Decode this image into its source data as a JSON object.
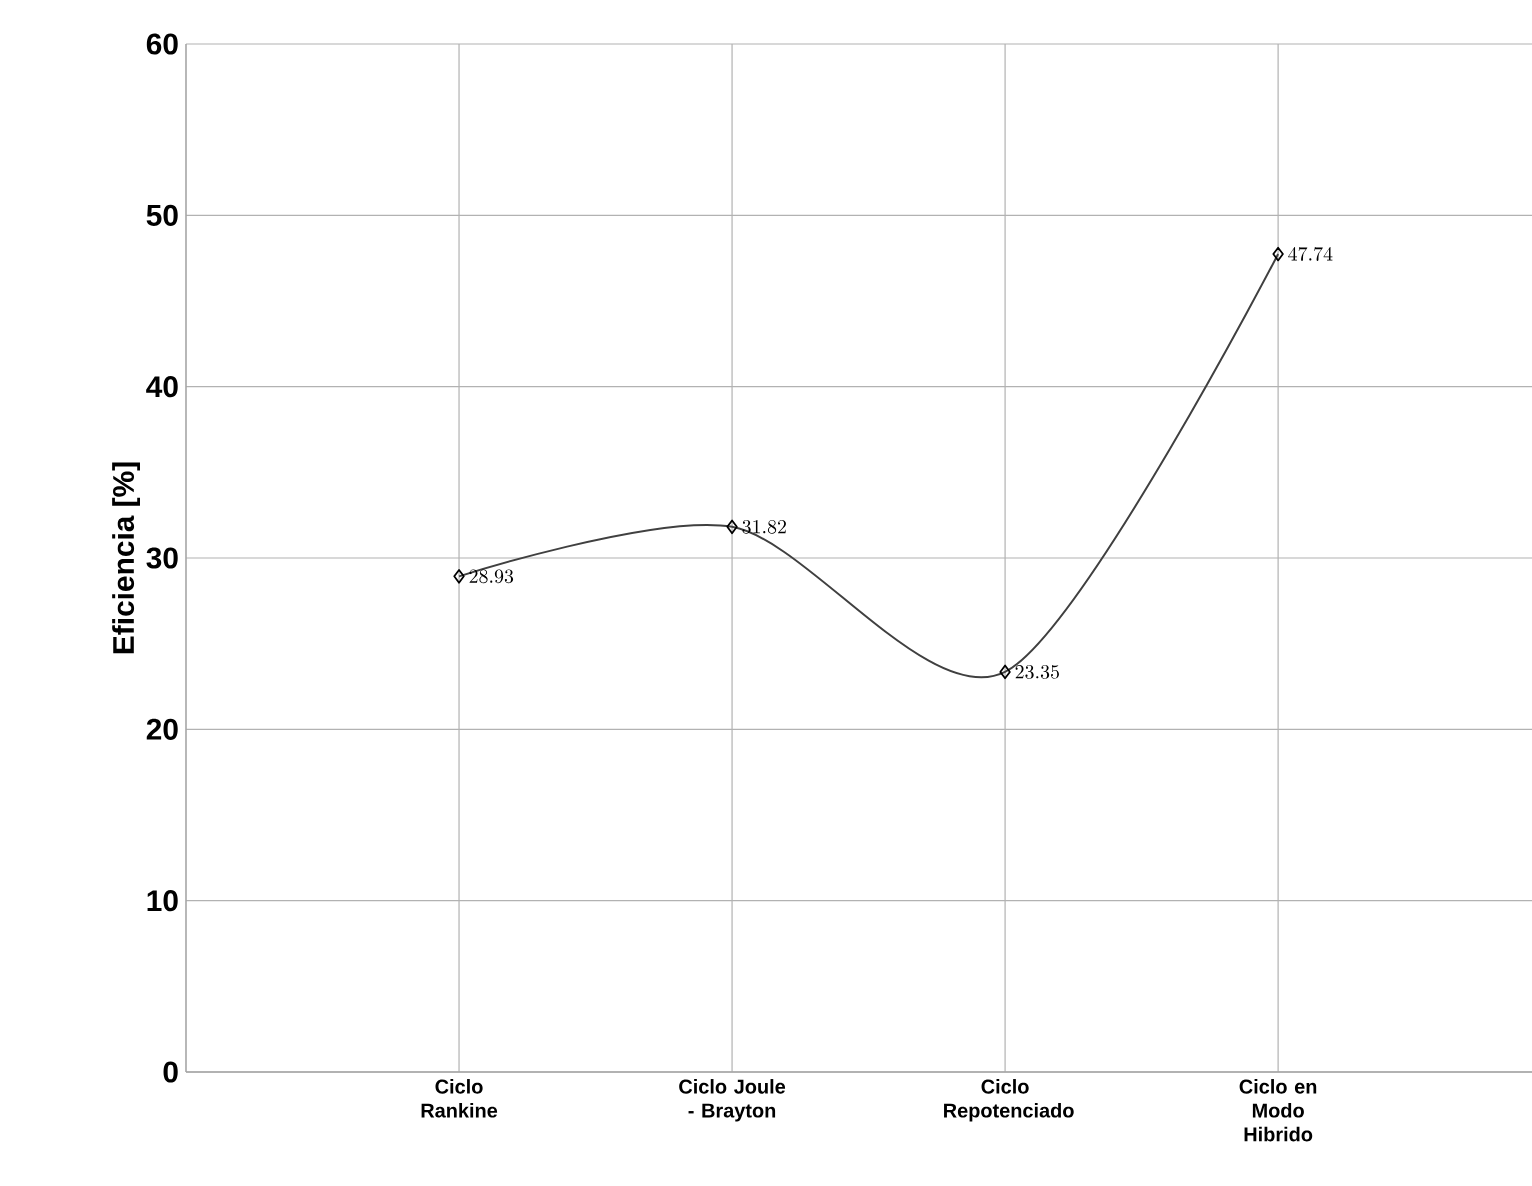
{
  "chart_data": {
    "type": "line",
    "ylabel": "Eficiencia [%]",
    "categories": [
      "Ciclo Rankine",
      "Ciclo Joule - Brayton",
      "Ciclo Repotenciado",
      "Ciclo en Modo Hibrido"
    ],
    "values": [
      28.93,
      31.82,
      23.35,
      47.74
    ],
    "color": "#404040",
    "marker": "diamond",
    "line_style": "solid",
    "data_labels": true,
    "grid": true,
    "ylim": [
      0,
      60
    ],
    "yticks": [
      0,
      10,
      20,
      30,
      40,
      50,
      60
    ]
  }
}
